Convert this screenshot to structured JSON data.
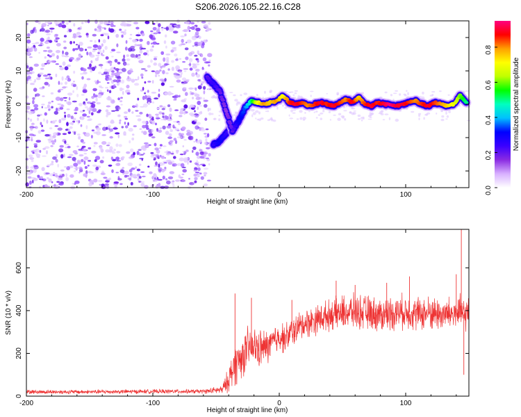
{
  "figure_title": "S206.2026.105.22.16.C28",
  "chart_data": [
    {
      "type": "heatmap",
      "name": "spectrogram",
      "xlabel": "Height of straight line (km)",
      "ylabel": "Frequency (Hz)",
      "xlim": [
        -200,
        150
      ],
      "ylim": [
        -25,
        25
      ],
      "xticks": [
        -200,
        -100,
        0,
        100
      ],
      "xtick_labels": [
        "-200",
        "-100",
        "0",
        "100"
      ],
      "yticks": [
        -20,
        -10,
        0,
        10,
        20
      ],
      "ytick_labels": [
        "-20",
        "-10",
        "0",
        "10",
        "20"
      ],
      "colorbar": {
        "label": "Normalized spectral amplitude",
        "range": [
          0,
          0.95
        ],
        "ticks": [
          0.0,
          0.2,
          0.4,
          0.6,
          0.8
        ],
        "tick_labels": [
          "0.0",
          "0.2",
          "0.4",
          "0.6",
          "0.8"
        ],
        "colormap": [
          "#ffffff",
          "#d8b0ff",
          "#8a2be2",
          "#3a00ff",
          "#0000ff",
          "#00c0ff",
          "#00ffc0",
          "#00ff00",
          "#c0ff00",
          "#ffff00",
          "#ffa000",
          "#ff0000",
          "#ff0080"
        ]
      },
      "noise_region_x": [
        -200,
        -55
      ],
      "ridge": {
        "x": [
          -57,
          -52,
          -47,
          -42,
          -37,
          -32,
          -27,
          -22,
          -17,
          -12,
          -7,
          -2,
          3,
          8,
          13,
          18,
          23,
          28,
          33,
          38,
          43,
          48,
          53,
          58,
          63,
          68,
          73,
          78,
          83,
          88,
          93,
          98,
          103,
          108,
          113,
          118,
          123,
          128,
          133,
          138,
          143,
          148
        ],
        "freq": [
          8,
          6,
          4,
          -2,
          -8,
          -5,
          -1,
          1,
          0.5,
          0,
          0.5,
          1,
          2.5,
          0.5,
          0,
          0.5,
          -0.5,
          0,
          0.5,
          0,
          -0.5,
          0.5,
          1.5,
          0.5,
          2,
          0,
          -0.5,
          0.5,
          0,
          0,
          -0.5,
          0,
          0.5,
          1,
          0,
          -0.5,
          0.5,
          0,
          -0.5,
          0,
          2.5,
          0.5
        ],
        "amplitude": [
          0.2,
          0.25,
          0.2,
          0.15,
          0.2,
          0.3,
          0.35,
          0.5,
          0.7,
          0.8,
          0.75,
          0.8,
          0.7,
          0.85,
          0.9,
          0.85,
          0.8,
          0.85,
          0.9,
          0.85,
          0.9,
          0.85,
          0.8,
          0.9,
          0.75,
          0.85,
          0.9,
          0.85,
          0.9,
          0.95,
          0.9,
          0.9,
          0.85,
          0.8,
          0.85,
          0.9,
          0.85,
          0.8,
          0.75,
          0.7,
          0.6,
          0.5
        ]
      },
      "secondary_branch": {
        "x": [
          -52,
          -47,
          -42,
          -37
        ],
        "freq": [
          -12,
          -11,
          -9,
          -6
        ],
        "amplitude": [
          0.25,
          0.3,
          0.25,
          0.2
        ]
      }
    },
    {
      "type": "line",
      "name": "snr",
      "xlabel": "Height of straight line (km)",
      "ylabel": "SNR (10 * v/v)",
      "xlim": [
        -200,
        150
      ],
      "ylim": [
        0,
        780
      ],
      "xticks": [
        -200,
        -100,
        0,
        100
      ],
      "xtick_labels": [
        "-200",
        "-100",
        "0",
        "100"
      ],
      "yticks": [
        0,
        200,
        400,
        600
      ],
      "ytick_labels": [
        "0",
        "200",
        "400",
        "600"
      ],
      "color": "#ee3333",
      "envelope": {
        "x": [
          -200,
          -150,
          -100,
          -60,
          -45,
          -40,
          -35,
          -30,
          -25,
          -20,
          -15,
          -10,
          -5,
          0,
          5,
          10,
          15,
          20,
          30,
          40,
          50,
          60,
          70,
          80,
          90,
          100,
          110,
          120,
          130,
          140,
          145,
          150
        ],
        "mean": [
          20,
          20,
          22,
          22,
          30,
          80,
          150,
          180,
          220,
          230,
          220,
          230,
          250,
          280,
          270,
          300,
          320,
          340,
          360,
          380,
          390,
          395,
          390,
          380,
          390,
          395,
          385,
          390,
          380,
          390,
          380,
          390
        ],
        "spread": [
          10,
          10,
          10,
          10,
          20,
          60,
          100,
          100,
          100,
          90,
          90,
          80,
          80,
          70,
          70,
          70,
          70,
          70,
          70,
          70,
          80,
          80,
          80,
          80,
          80,
          80,
          80,
          80,
          80,
          80,
          90,
          70
        ]
      },
      "spikes": [
        {
          "x": -35,
          "y": 480
        },
        {
          "x": -22,
          "y": 460
        },
        {
          "x": 10,
          "y": 450
        },
        {
          "x": 45,
          "y": 540
        },
        {
          "x": 60,
          "y": 520
        },
        {
          "x": 85,
          "y": 530
        },
        {
          "x": 103,
          "y": 560
        },
        {
          "x": 140,
          "y": 570
        },
        {
          "x": 144,
          "y": 780
        },
        {
          "x": 146,
          "y": 100
        }
      ]
    }
  ]
}
